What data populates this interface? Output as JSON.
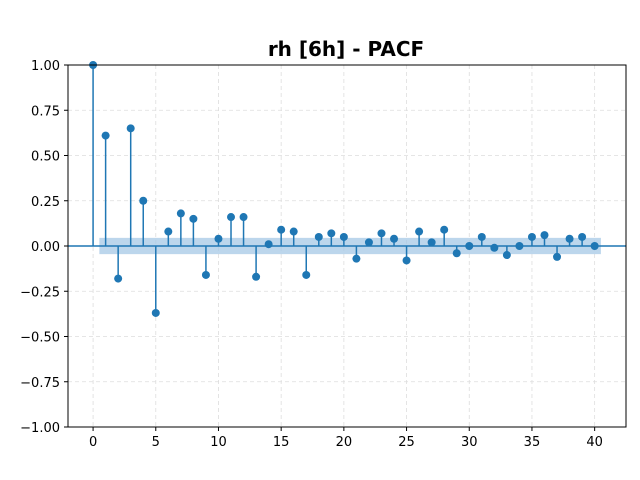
{
  "chart_data": {
    "type": "stem",
    "title": "rh [6h] - PACF",
    "xlabel": "",
    "ylabel": "",
    "xlim": [
      -2,
      42.5
    ],
    "ylim": [
      -1.0,
      1.0
    ],
    "x_ticks": [
      0,
      5,
      10,
      15,
      20,
      25,
      30,
      35,
      40
    ],
    "y_ticks": [
      -1.0,
      -0.75,
      -0.5,
      -0.25,
      0.0,
      0.25,
      0.5,
      0.75,
      1.0
    ],
    "grid": true,
    "confidence_band": {
      "lower": -0.045,
      "upper": 0.045,
      "x_start": 0.5,
      "x_end": 40.5
    },
    "colors": {
      "stem": "#1f77b4",
      "band": "#a6c8e6",
      "grid": "#dddddd",
      "zero_line": "#1f77b4"
    },
    "lags": [
      0,
      1,
      2,
      3,
      4,
      5,
      6,
      7,
      8,
      9,
      10,
      11,
      12,
      13,
      14,
      15,
      16,
      17,
      18,
      19,
      20,
      21,
      22,
      23,
      24,
      25,
      26,
      27,
      28,
      29,
      30,
      31,
      32,
      33,
      34,
      35,
      36,
      37,
      38,
      39,
      40
    ],
    "values": [
      1.0,
      0.61,
      -0.18,
      0.65,
      0.25,
      -0.37,
      0.08,
      0.18,
      0.15,
      -0.16,
      0.04,
      0.16,
      0.16,
      -0.17,
      0.01,
      0.09,
      0.08,
      -0.16,
      0.05,
      0.07,
      0.05,
      -0.07,
      0.02,
      0.07,
      0.04,
      -0.08,
      0.08,
      0.02,
      0.09,
      -0.04,
      0.0,
      0.05,
      -0.01,
      -0.05,
      0.0,
      0.05,
      0.06,
      -0.06,
      0.04,
      0.05,
      0.0
    ]
  }
}
